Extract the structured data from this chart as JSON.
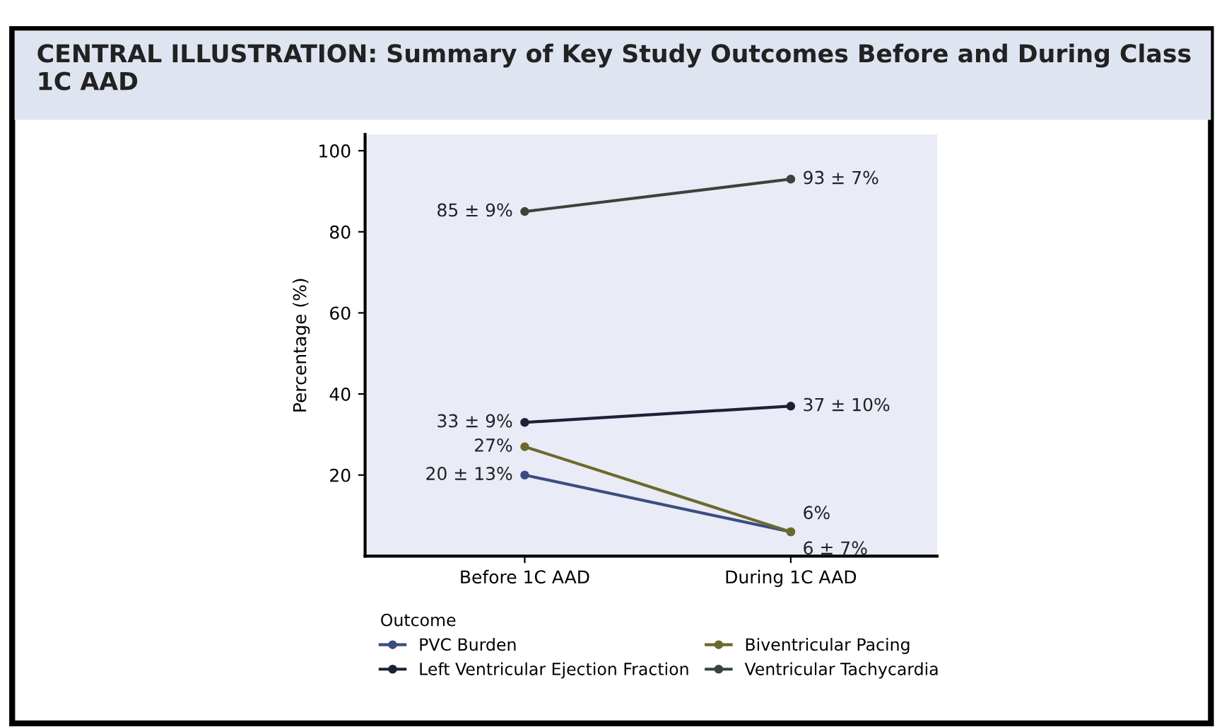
{
  "chart_data": {
    "type": "line",
    "title": "CENTRAL ILLUSTRATION: Summary of Key Study Outcomes Before and During Class 1C AAD",
    "categories": [
      "Before 1C AAD",
      "During 1C AAD"
    ],
    "ylabel": "Percentage (%)",
    "ylim": [
      0,
      104
    ],
    "yticks": [
      20,
      40,
      60,
      80,
      100
    ],
    "legend_title": "Outcome",
    "legend": "bottom",
    "marker": "circle",
    "line_style": "solid",
    "grid": false,
    "series": [
      {
        "name": "PVC Burden",
        "color": "#3b4d80",
        "values": [
          20,
          6
        ],
        "value_labels": [
          "20 ± 13%",
          "6 ± 7%"
        ]
      },
      {
        "name": "Left Ventricular Ejection Fraction",
        "color": "#1c2236",
        "values": [
          33,
          37
        ],
        "value_labels": [
          "33 ± 9%",
          "37 ± 10%"
        ]
      },
      {
        "name": "Biventricular Pacing",
        "color": "#6b6a2e",
        "values": [
          27,
          6
        ],
        "value_labels": [
          "27%",
          "6%"
        ]
      },
      {
        "name": "Ventricular Tachycardia",
        "color": "#38443c",
        "values": [
          85,
          93
        ],
        "value_labels": [
          "85 ± 9%",
          "93 ± 7%"
        ]
      }
    ]
  }
}
